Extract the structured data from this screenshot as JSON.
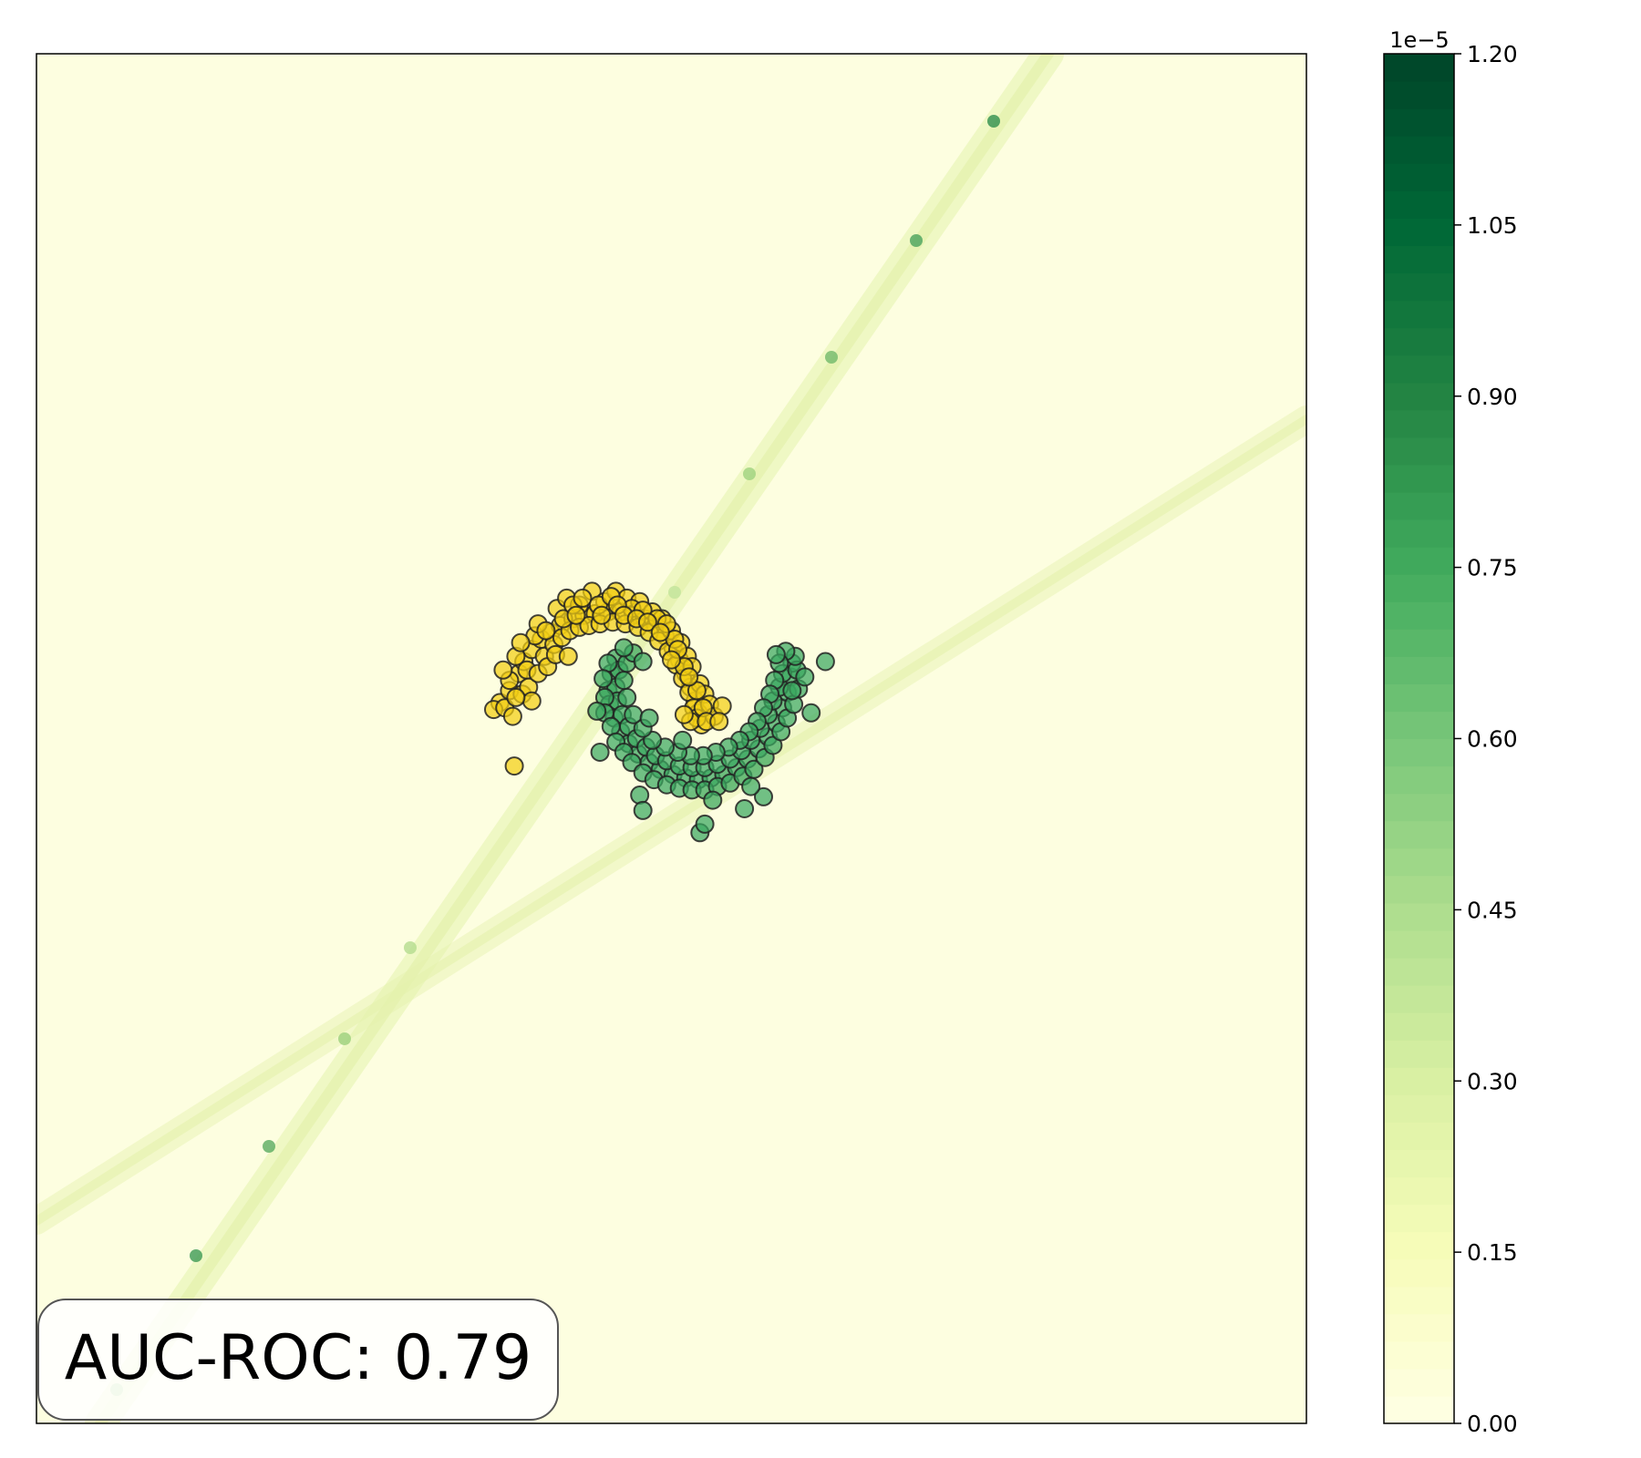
{
  "chart_data": {
    "type": "scatter",
    "title": "",
    "xlabel": "",
    "ylabel": "",
    "xlim": [
      -4,
      4
    ],
    "ylim": [
      -4,
      4
    ],
    "grid": false,
    "background": "density heatmap (YlGn colormap) with two faint diagonal ridges",
    "series": [
      {
        "class": 0,
        "color": "#f2cf14",
        "marker": "circle",
        "points": [
          [
            -1.08,
            0.21
          ],
          [
            -1.02,
            0.28
          ],
          [
            -0.96,
            0.38
          ],
          [
            -0.93,
            0.45
          ],
          [
            -0.88,
            0.52
          ],
          [
            -0.82,
            0.58
          ],
          [
            -0.76,
            0.62
          ],
          [
            -0.7,
            0.66
          ],
          [
            -0.62,
            0.7
          ],
          [
            -0.55,
            0.72
          ],
          [
            -0.48,
            0.73
          ],
          [
            -0.4,
            0.74
          ],
          [
            -0.32,
            0.74
          ],
          [
            -0.24,
            0.72
          ],
          [
            -0.17,
            0.7
          ],
          [
            -0.1,
            0.66
          ],
          [
            -0.04,
            0.6
          ],
          [
            0.01,
            0.53
          ],
          [
            0.05,
            0.46
          ],
          [
            0.09,
            0.38
          ],
          [
            0.12,
            0.3
          ],
          [
            0.15,
            0.22
          ],
          [
            0.17,
            0.15
          ],
          [
            0.19,
            0.08
          ],
          [
            -1.02,
            0.34
          ],
          [
            -0.98,
            0.48
          ],
          [
            -0.91,
            0.4
          ],
          [
            -0.86,
            0.6
          ],
          [
            -0.8,
            0.48
          ],
          [
            -0.74,
            0.55
          ],
          [
            -0.69,
            0.59
          ],
          [
            -0.64,
            0.63
          ],
          [
            -0.58,
            0.65
          ],
          [
            -0.52,
            0.66
          ],
          [
            -0.45,
            0.67
          ],
          [
            -0.37,
            0.68
          ],
          [
            -0.29,
            0.67
          ],
          [
            -0.21,
            0.65
          ],
          [
            -0.14,
            0.62
          ],
          [
            -0.08,
            0.57
          ],
          [
            -0.02,
            0.51
          ],
          [
            0.03,
            0.43
          ],
          [
            0.07,
            0.35
          ],
          [
            0.11,
            0.27
          ],
          [
            0.14,
            0.18
          ],
          [
            0.16,
            0.12
          ],
          [
            -1.12,
            0.17
          ],
          [
            -1.05,
            0.18
          ],
          [
            -1.0,
            0.13
          ],
          [
            -0.94,
            0.26
          ],
          [
            -0.9,
            0.3
          ],
          [
            -0.84,
            0.38
          ],
          [
            -0.78,
            0.42
          ],
          [
            -0.72,
            0.76
          ],
          [
            -0.66,
            0.82
          ],
          [
            -0.58,
            0.78
          ],
          [
            -0.5,
            0.86
          ],
          [
            -0.42,
            0.8
          ],
          [
            -0.35,
            0.86
          ],
          [
            -0.28,
            0.82
          ],
          [
            -0.2,
            0.8
          ],
          [
            -0.12,
            0.74
          ],
          [
            -0.06,
            0.7
          ],
          [
            0.0,
            0.63
          ],
          [
            0.06,
            0.56
          ],
          [
            0.1,
            0.48
          ],
          [
            0.13,
            0.42
          ],
          [
            0.18,
            0.32
          ],
          [
            0.21,
            0.26
          ],
          [
            0.24,
            0.2
          ],
          [
            0.27,
            0.13
          ],
          [
            0.12,
            0.1
          ],
          [
            0.08,
            0.14
          ],
          [
            -0.73,
            0.49
          ],
          [
            -0.95,
            0.56
          ],
          [
            -0.88,
            0.22
          ],
          [
            -0.68,
            0.7
          ],
          [
            -0.62,
            0.78
          ],
          [
            -0.56,
            0.82
          ],
          [
            -0.46,
            0.78
          ],
          [
            -0.38,
            0.83
          ],
          [
            -0.25,
            0.76
          ],
          [
            -0.18,
            0.75
          ],
          [
            -0.09,
            0.7
          ],
          [
            -0.03,
            0.67
          ],
          [
            0.02,
            0.58
          ],
          [
            0.04,
            0.52
          ],
          [
            0.08,
            0.42
          ],
          [
            0.16,
            0.28
          ],
          [
            0.2,
            0.18
          ],
          [
            0.22,
            0.1
          ],
          [
            -0.98,
            0.24
          ],
          [
            -1.06,
            0.4
          ],
          [
            -0.84,
            0.67
          ],
          [
            -0.79,
            0.63
          ],
          [
            -0.6,
            0.72
          ],
          [
            -0.44,
            0.72
          ],
          [
            -0.34,
            0.78
          ],
          [
            -0.3,
            0.72
          ],
          [
            -0.22,
            0.7
          ],
          [
            -0.15,
            0.68
          ],
          [
            -0.07,
            0.62
          ],
          [
            0.0,
            0.46
          ],
          [
            0.11,
            0.36
          ],
          [
            -0.99,
            -0.16
          ],
          [
            -0.65,
            0.48
          ],
          [
            0.32,
            0.19
          ],
          [
            0.3,
            0.1
          ]
        ]
      },
      {
        "class": 1,
        "color": "#3aa860",
        "marker": "circle",
        "points": [
          [
            -0.35,
            0.47
          ],
          [
            -0.38,
            0.38
          ],
          [
            -0.4,
            0.28
          ],
          [
            -0.39,
            0.2
          ],
          [
            -0.36,
            0.12
          ],
          [
            -0.32,
            0.04
          ],
          [
            -0.27,
            -0.03
          ],
          [
            -0.21,
            -0.09
          ],
          [
            -0.14,
            -0.14
          ],
          [
            -0.07,
            -0.18
          ],
          [
            0.01,
            -0.21
          ],
          [
            0.09,
            -0.23
          ],
          [
            0.17,
            -0.24
          ],
          [
            0.25,
            -0.23
          ],
          [
            0.33,
            -0.21
          ],
          [
            0.41,
            -0.17
          ],
          [
            0.48,
            -0.12
          ],
          [
            0.55,
            -0.06
          ],
          [
            0.61,
            0.01
          ],
          [
            0.66,
            0.09
          ],
          [
            0.7,
            0.18
          ],
          [
            0.73,
            0.27
          ],
          [
            0.75,
            0.36
          ],
          [
            0.76,
            0.44
          ],
          [
            -0.33,
            0.4
          ],
          [
            -0.35,
            0.3
          ],
          [
            -0.34,
            0.22
          ],
          [
            -0.31,
            0.14
          ],
          [
            -0.27,
            0.07
          ],
          [
            -0.22,
            0.0
          ],
          [
            -0.16,
            -0.05
          ],
          [
            -0.1,
            -0.1
          ],
          [
            -0.03,
            -0.13
          ],
          [
            0.05,
            -0.16
          ],
          [
            0.13,
            -0.17
          ],
          [
            0.21,
            -0.17
          ],
          [
            0.29,
            -0.15
          ],
          [
            0.37,
            -0.12
          ],
          [
            0.44,
            -0.07
          ],
          [
            0.5,
            -0.01
          ],
          [
            0.56,
            0.06
          ],
          [
            0.61,
            0.14
          ],
          [
            0.64,
            0.22
          ],
          [
            0.68,
            0.3
          ],
          [
            0.7,
            0.38
          ],
          [
            -0.4,
            0.44
          ],
          [
            -0.43,
            0.35
          ],
          [
            -0.42,
            0.24
          ],
          [
            -0.42,
            0.15
          ],
          [
            -0.38,
            0.07
          ],
          [
            -0.35,
            -0.02
          ],
          [
            -0.3,
            -0.08
          ],
          [
            -0.25,
            -0.14
          ],
          [
            -0.18,
            -0.2
          ],
          [
            -0.11,
            -0.24
          ],
          [
            -0.03,
            -0.27
          ],
          [
            0.05,
            -0.29
          ],
          [
            0.13,
            -0.3
          ],
          [
            0.21,
            -0.3
          ],
          [
            0.29,
            -0.28
          ],
          [
            0.37,
            -0.26
          ],
          [
            0.45,
            -0.22
          ],
          [
            0.52,
            -0.18
          ],
          [
            0.59,
            -0.11
          ],
          [
            0.64,
            -0.04
          ],
          [
            0.69,
            0.04
          ],
          [
            0.73,
            0.12
          ],
          [
            0.77,
            0.2
          ],
          [
            0.8,
            0.29
          ],
          [
            0.79,
            0.4
          ],
          [
            0.78,
            0.48
          ],
          [
            0.72,
            0.51
          ],
          [
            0.68,
            0.44
          ],
          [
            0.65,
            0.34
          ],
          [
            0.62,
            0.26
          ],
          [
            0.58,
            0.18
          ],
          [
            0.54,
            0.1
          ],
          [
            0.49,
            0.04
          ],
          [
            0.43,
            -0.01
          ],
          [
            0.36,
            -0.05
          ],
          [
            0.28,
            -0.08
          ],
          [
            0.2,
            -0.1
          ],
          [
            0.12,
            -0.1
          ],
          [
            0.04,
            -0.08
          ],
          [
            -0.04,
            -0.05
          ],
          [
            -0.12,
            -0.01
          ],
          [
            -0.18,
            0.06
          ],
          [
            -0.24,
            0.14
          ],
          [
            -0.28,
            0.24
          ],
          [
            -0.3,
            0.34
          ],
          [
            -0.28,
            0.44
          ],
          [
            -0.24,
            0.5
          ],
          [
            -0.18,
            0.45
          ],
          [
            -0.3,
            0.53
          ],
          [
            -0.47,
            0.16
          ],
          [
            -0.45,
            -0.08
          ],
          [
            -0.2,
            -0.33
          ],
          [
            -0.18,
            -0.42
          ],
          [
            0.18,
            -0.55
          ],
          [
            0.21,
            -0.5
          ],
          [
            0.46,
            -0.41
          ],
          [
            0.58,
            -0.34
          ],
          [
            0.66,
            0.49
          ],
          [
            0.88,
            0.15
          ],
          [
            0.97,
            0.45
          ],
          [
            0.84,
            0.36
          ],
          [
            0.76,
            0.28
          ],
          [
            -0.14,
            0.12
          ],
          [
            0.07,
            -0.01
          ],
          [
            0.26,
            -0.36
          ],
          [
            0.5,
            -0.28
          ]
        ]
      }
    ],
    "colorbar": {
      "colormap": "YlGn",
      "min": 0.0,
      "max": 1.2,
      "ticks": [
        "0.00",
        "0.15",
        "0.30",
        "0.45",
        "0.60",
        "0.75",
        "0.90",
        "1.05",
        "1.20"
      ],
      "tick_values": [
        0.0,
        0.15,
        0.3,
        0.45,
        0.6,
        0.75,
        0.9,
        1.05,
        1.2
      ],
      "offset_label": "1e−5",
      "levels": 50
    },
    "annotation": {
      "text": "AUC-ROC: 0.79",
      "placement": "bottom-left"
    }
  }
}
